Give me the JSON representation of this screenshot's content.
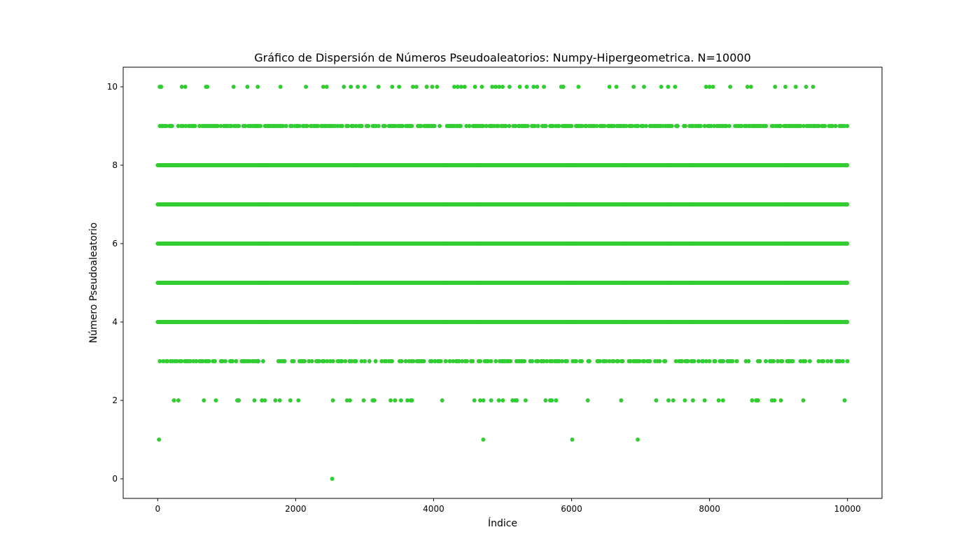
{
  "chart_data": {
    "type": "scatter",
    "title": "Gráfico de Dispersión de Números Pseudoaleatorios: Numpy-Hipergeometrica. N=10000",
    "xlabel": "Índice",
    "ylabel": "Número Pseudoaleatorio",
    "xlim": [
      -500,
      10500
    ],
    "ylim": [
      -0.5,
      10.5
    ],
    "xticks": [
      0,
      2000,
      4000,
      6000,
      8000,
      10000
    ],
    "yticks": [
      0,
      2,
      4,
      6,
      8,
      10
    ],
    "grid": false,
    "legend": "none",
    "marker_color": "#32cd32",
    "n_points": 10000,
    "dense_levels": [
      4,
      5,
      6,
      7,
      8
    ],
    "levels": [
      {
        "y": 10,
        "x": [
          30,
          50,
          350,
          400,
          700,
          720,
          1100,
          1300,
          1450,
          1780,
          2150,
          2400,
          2450,
          2700,
          2800,
          2900,
          3000,
          3200,
          3400,
          3500,
          3700,
          3750,
          3900,
          3980,
          4050,
          4300,
          4350,
          4400,
          4450,
          4600,
          4700,
          4850,
          4900,
          4950,
          5000,
          5100,
          5250,
          5350,
          5450,
          5500,
          5600,
          5850,
          5880,
          6100,
          6550,
          6650,
          6900,
          7050,
          7300,
          7400,
          7500,
          7950,
          8000,
          8050,
          8300,
          8550,
          8600,
          8950,
          9100,
          9250,
          9400,
          9500
        ]
      },
      {
        "y": 1,
        "x": [
          20,
          4720,
          6010,
          6960
        ]
      },
      {
        "y": 0,
        "x": [
          2530
        ]
      }
    ],
    "sparse_levels": [
      {
        "y": 9,
        "density": 0.72
      },
      {
        "y": 3,
        "density": 0.55
      },
      {
        "y": 2,
        "density": 0.12
      }
    ]
  }
}
